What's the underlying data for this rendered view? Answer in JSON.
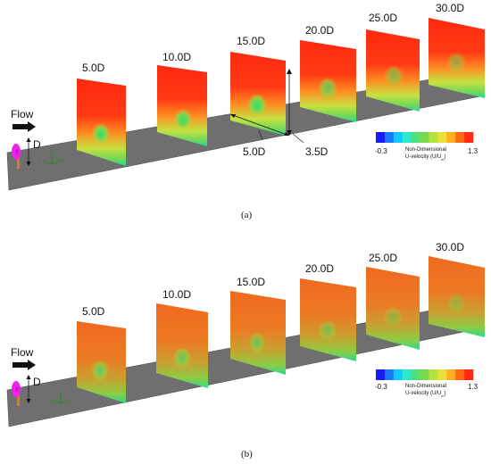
{
  "colors": {
    "ground": "#6f6f6f",
    "ground_edge": "#545454",
    "colorbar": [
      "#1a1aff",
      "#1a78ff",
      "#10c8ff",
      "#2ee8c8",
      "#4ee07a",
      "#7ad84a",
      "#b4e040",
      "#e8e036",
      "#ffb020",
      "#ff6a10",
      "#ff2a10"
    ],
    "turbine_rotor": "#ee22ee",
    "turbine_tower": "#e07818"
  },
  "icons": {
    "flow_arrow": "flow-arrow-icon",
    "turbine": "wind-turbine-icon",
    "axes": "coordinate-axes-icon"
  },
  "panels": [
    {
      "label": "(a)",
      "flow_label": "Flow",
      "diameter_label": "D",
      "plane_labels": [
        "5.0D",
        "10.0D",
        "15.0D",
        "20.0D",
        "25.0D",
        "30.0D"
      ],
      "annotations": {
        "spacing": "5.0D",
        "height": "3.5D"
      },
      "colorbar": {
        "min": "-0.3",
        "max": "1.3",
        "title_line1": "Non-Dimensional",
        "title_line2": "U-velocity (U/U",
        "title_sub": "in",
        "title_end": ")"
      }
    },
    {
      "label": "(b)",
      "flow_label": "Flow",
      "diameter_label": "D",
      "plane_labels": [
        "5.0D",
        "10.0D",
        "15.0D",
        "20.0D",
        "25.0D",
        "30.0D"
      ],
      "colorbar": {
        "min": "-0.3",
        "max": "1.3",
        "title_line1": "Non-Dimensional",
        "title_line2": "U-velocity (U/U",
        "title_sub": "in",
        "title_end": ")"
      }
    }
  ]
}
